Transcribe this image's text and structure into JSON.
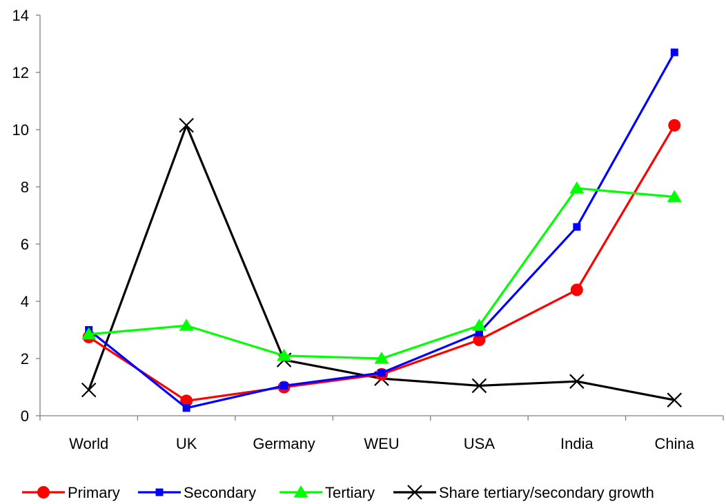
{
  "chart_data": {
    "type": "line",
    "title": "",
    "xlabel": "",
    "ylabel": "",
    "categories": [
      "World",
      "UK",
      "Germany",
      "WEU",
      "USA",
      "India",
      "China"
    ],
    "ylim": [
      0,
      14
    ],
    "yticks": [
      "0",
      "2",
      "4",
      "6",
      "8",
      "10",
      "12",
      "14"
    ],
    "grid": false,
    "legend_position": "bottom",
    "series": [
      {
        "name": "Primary",
        "color": "#ff0000",
        "marker": "circle",
        "values": [
          2.75,
          0.52,
          1.0,
          1.45,
          2.65,
          4.4,
          10.15
        ]
      },
      {
        "name": "Secondary",
        "color": "#0000ff",
        "marker": "square",
        "values": [
          3.0,
          0.27,
          1.05,
          1.5,
          2.9,
          6.6,
          12.7
        ]
      },
      {
        "name": "Tertiary",
        "color": "#00ff00",
        "marker": "triangle",
        "values": [
          2.85,
          3.15,
          2.1,
          2.0,
          3.15,
          7.95,
          7.65
        ]
      },
      {
        "name": "Share tertiary/secondary growth",
        "color": "#000000",
        "marker": "x",
        "values": [
          0.9,
          10.15,
          1.95,
          1.3,
          1.05,
          1.2,
          0.55
        ]
      }
    ]
  }
}
